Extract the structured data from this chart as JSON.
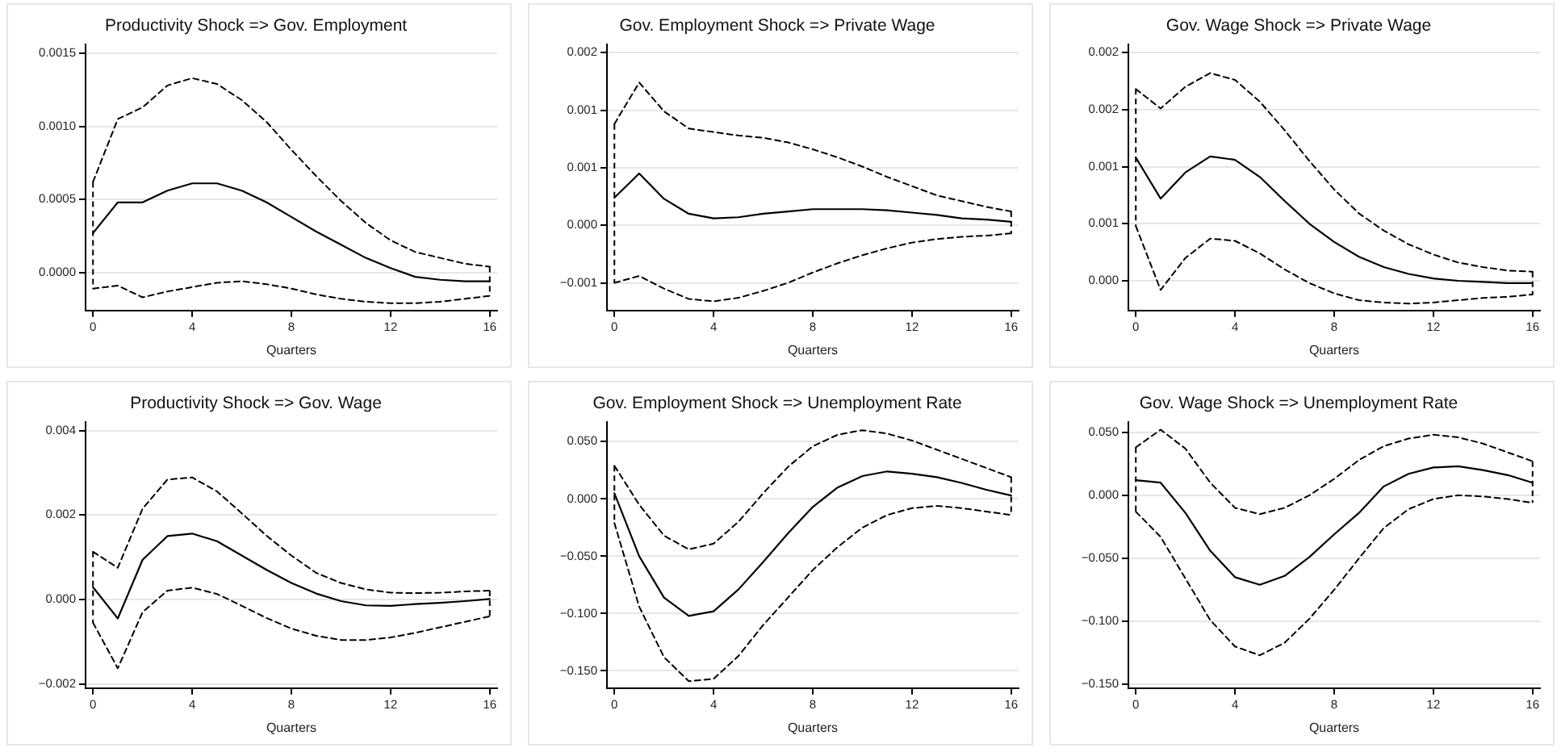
{
  "chart_data": [
    {
      "type": "line",
      "title": "Productivity Shock => Gov. Employment",
      "xlabel": "Quarters",
      "x": [
        0,
        1,
        2,
        3,
        4,
        5,
        6,
        7,
        8,
        9,
        10,
        11,
        12,
        13,
        14,
        15,
        16
      ],
      "xlim": [
        -0.3,
        16.3
      ],
      "xticks": [
        0,
        4,
        8,
        12,
        16
      ],
      "ylim": [
        -0.00026,
        0.00156
      ],
      "yticks": [
        0.0015,
        {
          "value": 0.001,
          "label": "0.0010"
        },
        0.0005,
        {
          "value": 0,
          "label": "0.0000"
        }
      ],
      "grid": "y",
      "series": [
        {
          "color": "#000000",
          "line_style": "solid",
          "values": [
            0.00027,
            0.00048,
            0.00048,
            0.00056,
            0.00061,
            0.00061,
            0.00056,
            0.00048,
            0.00038,
            0.00028,
            0.00019,
            0.0001,
            3e-05,
            -3e-05,
            -5e-05,
            -6e-05,
            -6e-05
          ],
          "errors": [
            [
              -0.00011,
              0.00062
            ],
            null,
            null,
            null,
            null,
            null,
            null,
            null,
            null,
            null,
            null,
            null,
            null,
            null,
            null,
            null,
            [
              -0.00016,
              4e-05
            ]
          ]
        },
        {
          "color": "#000000",
          "line_style": "dashed",
          "values": [
            0.00062,
            0.00105,
            0.00113,
            0.00128,
            0.00133,
            0.00129,
            0.00118,
            0.00103,
            0.00084,
            0.00066,
            0.00049,
            0.00034,
            0.00022,
            0.00014,
            0.0001,
            6e-05,
            4e-05
          ]
        },
        {
          "color": "#000000",
          "line_style": "dashed",
          "values": [
            -0.00011,
            -9e-05,
            -0.00017,
            -0.00013,
            -0.0001,
            -7e-05,
            -6e-05,
            -8e-05,
            -0.00011,
            -0.00015,
            -0.00018,
            -0.0002,
            -0.00021,
            -0.00021,
            -0.0002,
            -0.00018,
            -0.00016
          ]
        }
      ]
    },
    {
      "type": "line",
      "title": "Gov. Employment Shock => Private Wage",
      "xlabel": "Quarters",
      "x": [
        0,
        1,
        2,
        3,
        4,
        5,
        6,
        7,
        8,
        9,
        10,
        11,
        12,
        13,
        14,
        15,
        16
      ],
      "xlim": [
        -0.3,
        16.3
      ],
      "xticks": [
        0,
        4,
        8,
        12,
        16
      ],
      "ylim": [
        -0.00074,
        0.00157
      ],
      "yticks": [
        {
          "value": 0.0015,
          "label": "0.002"
        },
        0.001,
        {
          "value": 0.0005,
          "label": "0.001"
        },
        {
          "value": 0,
          "label": "0.000"
        },
        {
          "value": -0.0005,
          "label": "−0.001"
        }
      ],
      "grid": "y",
      "series": [
        {
          "color": "#000000",
          "line_style": "solid",
          "values": [
            0.00024,
            0.00045,
            0.00023,
            0.0001,
            6e-05,
            7e-05,
            0.0001,
            0.00012,
            0.00014,
            0.00014,
            0.00014,
            0.00013,
            0.00011,
            9e-05,
            6e-05,
            5e-05,
            3e-05
          ],
          "errors": [
            [
              -0.0005,
              0.00088
            ],
            null,
            null,
            null,
            null,
            null,
            null,
            null,
            null,
            null,
            null,
            null,
            null,
            null,
            null,
            null,
            [
              -7e-05,
              0.00012
            ]
          ]
        },
        {
          "color": "#000000",
          "line_style": "dashed",
          "values": [
            0.00088,
            0.00124,
            0.00099,
            0.00084,
            0.00081,
            0.00078,
            0.00076,
            0.00072,
            0.00066,
            0.00059,
            0.00051,
            0.00042,
            0.00034,
            0.00026,
            0.00021,
            0.00016,
            0.00012
          ]
        },
        {
          "color": "#000000",
          "line_style": "dashed",
          "values": [
            -0.0005,
            -0.00044,
            -0.00055,
            -0.00064,
            -0.00066,
            -0.00063,
            -0.00057,
            -0.0005,
            -0.00041,
            -0.00033,
            -0.00026,
            -0.0002,
            -0.00015,
            -0.00012,
            -0.0001,
            -9e-05,
            -7e-05
          ]
        }
      ]
    },
    {
      "type": "line",
      "title": "Gov. Wage Shock => Private Wage",
      "xlabel": "Quarters",
      "x": [
        0,
        1,
        2,
        3,
        4,
        5,
        6,
        7,
        8,
        9,
        10,
        11,
        12,
        13,
        14,
        15,
        16
      ],
      "xlim": [
        -0.3,
        16.3
      ],
      "xticks": [
        0,
        4,
        8,
        12,
        16
      ],
      "ylim": [
        -0.00026,
        0.00207
      ],
      "yticks": [
        0.002,
        {
          "value": 0.0015,
          "label": "0.002"
        },
        0.001,
        {
          "value": 0.0005,
          "label": "0.001"
        },
        {
          "value": 0,
          "label": "0.000"
        }
      ],
      "grid": "y",
      "series": [
        {
          "color": "#000000",
          "line_style": "solid",
          "values": [
            0.00108,
            0.00072,
            0.00095,
            0.00109,
            0.00106,
            0.00091,
            0.0007,
            0.0005,
            0.00034,
            0.00021,
            0.00012,
            6e-05,
            2e-05,
            0,
            -1e-05,
            -2e-05,
            -2e-05
          ],
          "errors": [
            [
              0.00048,
              0.00168
            ],
            null,
            null,
            null,
            null,
            null,
            null,
            null,
            null,
            null,
            null,
            null,
            null,
            null,
            null,
            null,
            [
              -0.00012,
              8e-05
            ]
          ]
        },
        {
          "color": "#000000",
          "line_style": "dashed",
          "values": [
            0.00168,
            0.00151,
            0.0017,
            0.00182,
            0.00176,
            0.00157,
            0.00132,
            0.00105,
            0.0008,
            0.00059,
            0.00044,
            0.00032,
            0.00023,
            0.00016,
            0.00012,
            9e-05,
            8e-05
          ]
        },
        {
          "color": "#000000",
          "line_style": "dashed",
          "values": [
            0.00048,
            -8e-05,
            0.0002,
            0.00037,
            0.00035,
            0.00024,
            0.0001,
            -2e-05,
            -0.00011,
            -0.00017,
            -0.00019,
            -0.0002,
            -0.00019,
            -0.00017,
            -0.00015,
            -0.00014,
            -0.00012
          ]
        }
      ]
    },
    {
      "type": "line",
      "title": "Productivity Shock => Gov. Wage",
      "xlabel": "Quarters",
      "x": [
        0,
        1,
        2,
        3,
        4,
        5,
        6,
        7,
        8,
        9,
        10,
        11,
        12,
        13,
        14,
        15,
        16
      ],
      "xlim": [
        -0.3,
        16.3
      ],
      "xticks": [
        0,
        4,
        8,
        12,
        16
      ],
      "ylim": [
        -0.0021,
        0.0042
      ],
      "yticks": [
        0.004,
        0.002,
        {
          "value": 0,
          "label": "0.000"
        },
        {
          "value": -0.002,
          "label": "−0.002"
        }
      ],
      "grid": "y",
      "series": [
        {
          "color": "#000000",
          "line_style": "solid",
          "values": [
            0.00029,
            -0.00045,
            0.00094,
            0.0015,
            0.00156,
            0.00138,
            0.00104,
            0.0007,
            0.00039,
            0.00014,
            -4e-05,
            -0.00014,
            -0.00015,
            -0.00011,
            -8e-05,
            -4e-05,
            1e-05
          ],
          "errors": [
            [
              -0.00055,
              0.00113
            ],
            null,
            null,
            null,
            null,
            null,
            null,
            null,
            null,
            null,
            null,
            null,
            null,
            null,
            null,
            null,
            [
              -0.0004,
              0.00021
            ]
          ]
        },
        {
          "color": "#000000",
          "line_style": "dashed",
          "values": [
            0.00113,
            0.00075,
            0.00215,
            0.00284,
            0.00289,
            0.00256,
            0.00204,
            0.00151,
            0.00104,
            0.00063,
            0.00039,
            0.00024,
            0.00016,
            0.00015,
            0.00016,
            0.00019,
            0.00021
          ]
        },
        {
          "color": "#000000",
          "line_style": "dashed",
          "values": [
            -0.00055,
            -0.00163,
            -0.0003,
            0.00021,
            0.00028,
            0.00013,
            -0.00015,
            -0.00044,
            -0.00069,
            -0.00086,
            -0.00096,
            -0.00096,
            -0.0009,
            -0.00079,
            -0.00066,
            -0.00053,
            -0.0004
          ]
        }
      ]
    },
    {
      "type": "line",
      "title": "Gov. Employment Shock => Unemployment Rate",
      "xlabel": "Quarters",
      "x": [
        0,
        1,
        2,
        3,
        4,
        5,
        6,
        7,
        8,
        9,
        10,
        11,
        12,
        13,
        14,
        15,
        16
      ],
      "xlim": [
        -0.3,
        16.3
      ],
      "xticks": [
        0,
        4,
        8,
        12,
        16
      ],
      "ylim": [
        -0.165,
        0.067
      ],
      "yticks": [
        {
          "value": 0.05,
          "label": "0.050"
        },
        {
          "value": 0,
          "label": "0.000"
        },
        {
          "value": -0.05,
          "label": "−0.050"
        },
        {
          "value": -0.1,
          "label": "−0.100"
        },
        {
          "value": -0.15,
          "label": "−0.150"
        }
      ],
      "grid": "y",
      "series": [
        {
          "color": "#000000",
          "line_style": "solid",
          "values": [
            0.005,
            -0.05,
            -0.086,
            -0.102,
            -0.098,
            -0.079,
            -0.055,
            -0.03,
            -0.007,
            0.01,
            0.02,
            0.024,
            0.022,
            0.019,
            0.014,
            0.008,
            0.003
          ],
          "errors": [
            [
              -0.021,
              0.029
            ],
            null,
            null,
            null,
            null,
            null,
            null,
            null,
            null,
            null,
            null,
            null,
            null,
            null,
            null,
            null,
            [
              -0.014,
              0.019
            ]
          ]
        },
        {
          "color": "#000000",
          "line_style": "dashed",
          "values": [
            0.029,
            -0.005,
            -0.032,
            -0.044,
            -0.039,
            -0.02,
            0.005,
            0.028,
            0.046,
            0.056,
            0.06,
            0.057,
            0.051,
            0.043,
            0.035,
            0.027,
            0.019
          ]
        },
        {
          "color": "#000000",
          "line_style": "dashed",
          "values": [
            -0.021,
            -0.094,
            -0.138,
            -0.159,
            -0.157,
            -0.137,
            -0.11,
            -0.086,
            -0.062,
            -0.042,
            -0.025,
            -0.014,
            -0.008,
            -0.006,
            -0.008,
            -0.011,
            -0.014
          ]
        }
      ]
    },
    {
      "type": "line",
      "title": "Gov. Wage Shock => Unemployment Rate",
      "xlabel": "Quarters",
      "x": [
        0,
        1,
        2,
        3,
        4,
        5,
        6,
        7,
        8,
        9,
        10,
        11,
        12,
        13,
        14,
        15,
        16
      ],
      "xlim": [
        -0.3,
        16.3
      ],
      "xticks": [
        0,
        4,
        8,
        12,
        16
      ],
      "ylim": [
        -0.153,
        0.058
      ],
      "yticks": [
        {
          "value": 0.05,
          "label": "0.050"
        },
        {
          "value": 0,
          "label": "0.000"
        },
        {
          "value": -0.05,
          "label": "−0.050"
        },
        {
          "value": -0.1,
          "label": "−0.100"
        },
        {
          "value": -0.15,
          "label": "−0.150"
        }
      ],
      "grid": "y",
      "series": [
        {
          "color": "#000000",
          "line_style": "solid",
          "values": [
            0.012,
            0.01,
            -0.014,
            -0.044,
            -0.065,
            -0.071,
            -0.064,
            -0.049,
            -0.031,
            -0.014,
            0.007,
            0.017,
            0.022,
            0.023,
            0.02,
            0.016,
            0.01
          ],
          "errors": [
            [
              -0.013,
              0.038
            ],
            null,
            null,
            null,
            null,
            null,
            null,
            null,
            null,
            null,
            null,
            null,
            null,
            null,
            null,
            null,
            [
              -0.006,
              0.027
            ]
          ]
        },
        {
          "color": "#000000",
          "line_style": "dashed",
          "values": [
            0.038,
            0.052,
            0.037,
            0.01,
            -0.01,
            -0.015,
            -0.01,
            0,
            0.013,
            0.028,
            0.039,
            0.045,
            0.048,
            0.046,
            0.041,
            0.034,
            0.027
          ]
        },
        {
          "color": "#000000",
          "line_style": "dashed",
          "values": [
            -0.013,
            -0.033,
            -0.066,
            -0.099,
            -0.12,
            -0.127,
            -0.117,
            -0.098,
            -0.075,
            -0.05,
            -0.026,
            -0.011,
            -0.003,
            0,
            -0.001,
            -0.003,
            -0.006
          ]
        }
      ]
    }
  ]
}
